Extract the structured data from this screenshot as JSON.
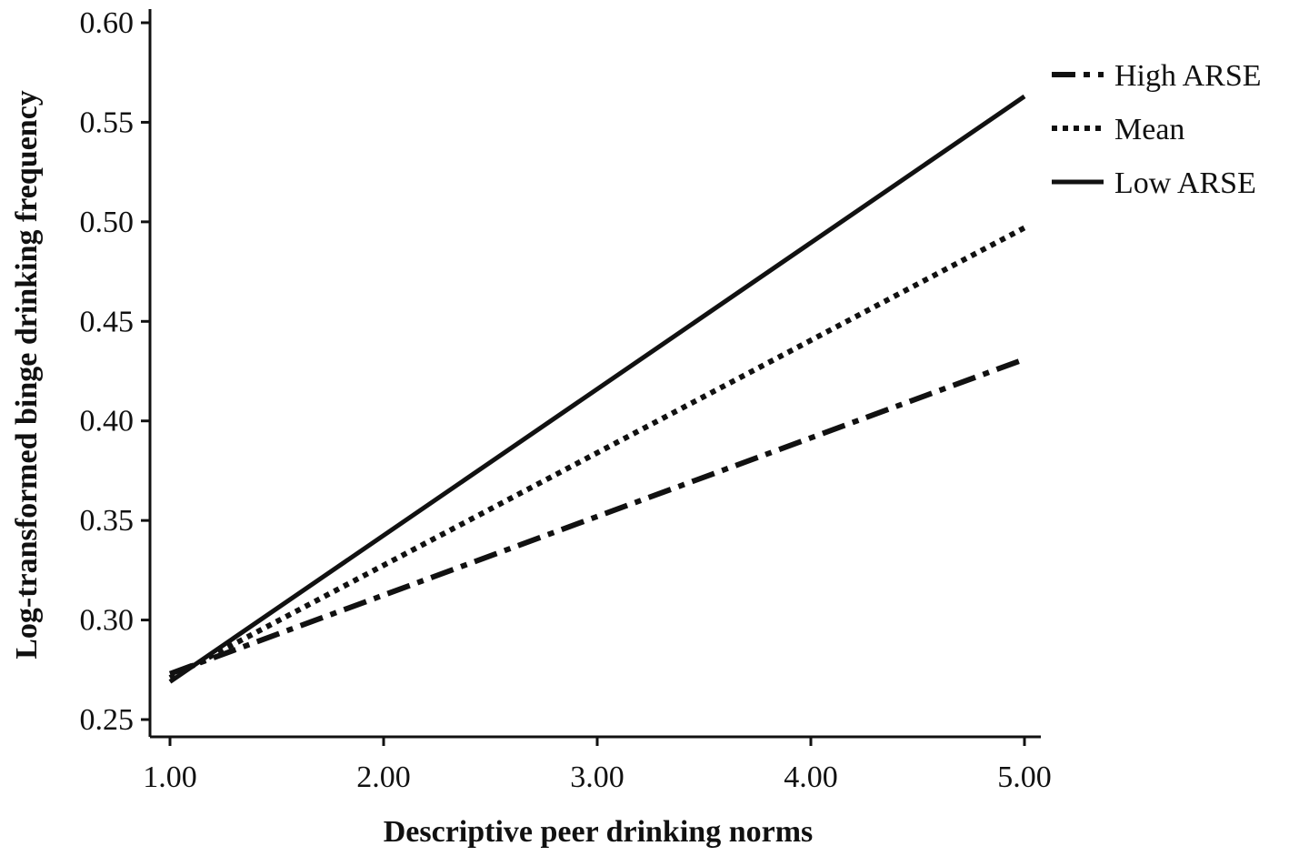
{
  "chart_data": {
    "type": "line",
    "title": "",
    "xlabel": "Descriptive peer drinking norms",
    "ylabel": "Log-transformed binge drinking frequency",
    "xlim": [
      1.0,
      5.0
    ],
    "ylim": [
      0.25,
      0.6
    ],
    "x_ticks": [
      "1.00",
      "2.00",
      "3.00",
      "4.00",
      "5.00"
    ],
    "y_ticks": [
      "0.25",
      "0.30",
      "0.35",
      "0.40",
      "0.45",
      "0.50",
      "0.55",
      "0.60"
    ],
    "grid": false,
    "legend_position": "top-right",
    "series": [
      {
        "name": "High ARSE",
        "style": "dash-dot",
        "x": [
          1.0,
          5.0
        ],
        "y": [
          0.273,
          0.431
        ]
      },
      {
        "name": "Mean",
        "style": "dotted",
        "x": [
          1.0,
          5.0
        ],
        "y": [
          0.271,
          0.497
        ]
      },
      {
        "name": "Low ARSE",
        "style": "solid",
        "x": [
          1.0,
          5.0
        ],
        "y": [
          0.269,
          0.563
        ]
      }
    ],
    "line_color": "#111111"
  }
}
